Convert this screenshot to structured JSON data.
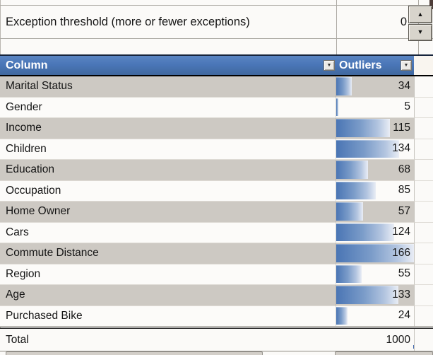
{
  "controls": {
    "threshold_label": "Exception threshold (more or fewer exceptions)",
    "threshold_value": "0",
    "spinner_up_icon": "▲",
    "spinner_down_icon": "▼"
  },
  "table": {
    "header": {
      "column_label": "Column",
      "outliers_label": "Outliers",
      "filter_icon": "▼"
    },
    "rows": [
      {
        "label": "Marital Status",
        "value": 34
      },
      {
        "label": "Gender",
        "value": 5
      },
      {
        "label": "Income",
        "value": 115
      },
      {
        "label": "Children",
        "value": 134
      },
      {
        "label": "Education",
        "value": 68
      },
      {
        "label": "Occupation",
        "value": 85
      },
      {
        "label": "Home Owner",
        "value": 57
      },
      {
        "label": "Cars",
        "value": 124
      },
      {
        "label": "Commute Distance",
        "value": 166
      },
      {
        "label": "Region",
        "value": 55
      },
      {
        "label": "Age",
        "value": 133
      },
      {
        "label": "Purchased Bike",
        "value": 24
      }
    ],
    "total": {
      "label": "Total",
      "value": "1000"
    }
  },
  "colors": {
    "header_bg": "#4a76b8",
    "bar_color": "#4a75b4",
    "row_alt_bg": "#cdc9c3",
    "accent_blue": "#3f66ac"
  }
}
